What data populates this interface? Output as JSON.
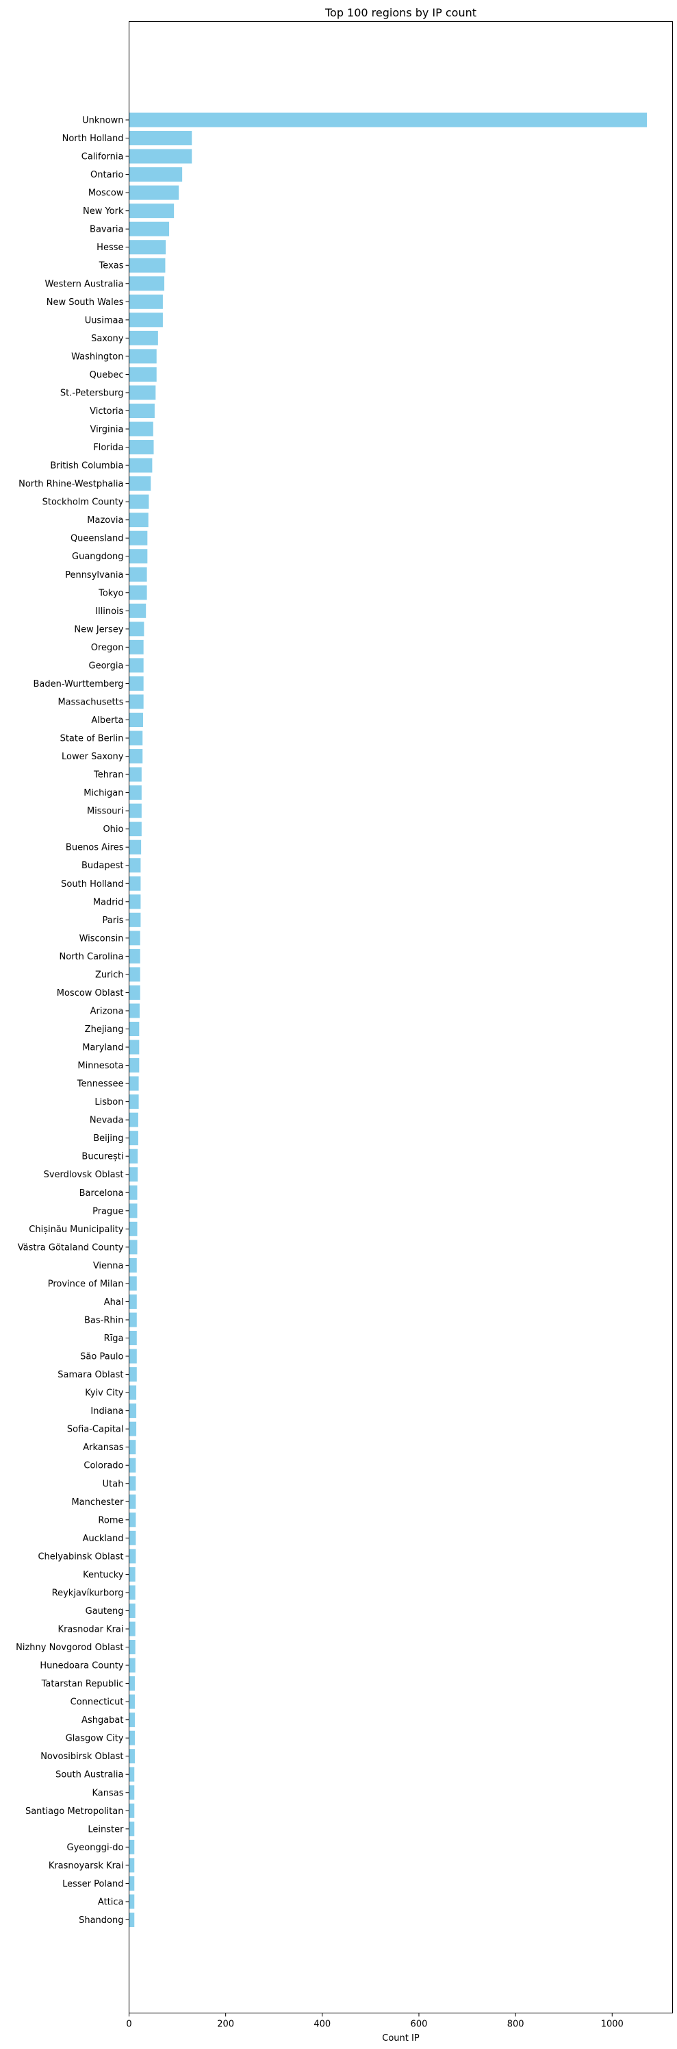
{
  "chart_data": {
    "type": "bar",
    "orientation": "horizontal",
    "title": "Top 100 regions by IP count",
    "xlabel": "Count IP",
    "ylabel": "",
    "xlim": [
      0,
      1125
    ],
    "xticks": [
      0,
      200,
      400,
      600,
      800,
      1000
    ],
    "grid": false,
    "legend": "none",
    "bar_color": "#87CEEB",
    "categories": [
      "Unknown",
      "North Holland",
      "California",
      "Ontario",
      "Moscow",
      "New York",
      "Bavaria",
      "Hesse",
      "Texas",
      "Western Australia",
      "New South Wales",
      "Uusimaa",
      "Saxony",
      "Washington",
      "Quebec",
      "St.-Petersburg",
      "Victoria",
      "Virginia",
      "Florida",
      "British Columbia",
      "North Rhine-Westphalia",
      "Stockholm County",
      "Mazovia",
      "Queensland",
      "Guangdong",
      "Pennsylvania",
      "Tokyo",
      "Illinois",
      "New Jersey",
      "Oregon",
      "Georgia",
      "Baden-Wurttemberg",
      "Massachusetts",
      "Alberta",
      "State of Berlin",
      "Lower Saxony",
      "Tehran",
      "Michigan",
      "Missouri",
      "Ohio",
      "Buenos Aires",
      "Budapest",
      "South Holland",
      "Madrid",
      "Paris",
      "Wisconsin",
      "North Carolina",
      "Zurich",
      "Moscow Oblast",
      "Arizona",
      "Zhejiang",
      "Maryland",
      "Minnesota",
      "Tennessee",
      "Lisbon",
      "Nevada",
      "Beijing",
      "București",
      "Sverdlovsk Oblast",
      "Barcelona",
      "Prague",
      "Chișinău Municipality",
      "Västra Götaland County",
      "Vienna",
      "Province of Milan",
      "Ahal",
      "Bas-Rhin",
      "Rīga",
      "São Paulo",
      "Samara Oblast",
      "Kyiv City",
      "Indiana",
      "Sofia-Capital",
      "Arkansas",
      "Colorado",
      "Utah",
      "Manchester",
      "Rome",
      "Auckland",
      "Chelyabinsk Oblast",
      "Kentucky",
      "Reykjavíkurborg",
      "Gauteng",
      "Krasnodar Krai",
      "Nizhny Novgorod Oblast",
      "Hunedoara County",
      "Tatarstan Republic",
      "Connecticut",
      "Ashgabat",
      "Glasgow City",
      "Novosibirsk Oblast",
      "South Australia",
      "Kansas",
      "Santiago Metropolitan",
      "Leinster",
      "Gyeonggi-do",
      "Krasnoyarsk Krai",
      "Lesser Poland",
      "Attica",
      "Shandong"
    ],
    "values": [
      1072,
      130,
      130,
      110,
      103,
      93,
      83,
      76,
      75,
      73,
      70,
      70,
      60,
      57,
      57,
      55,
      53,
      50,
      51,
      48,
      45,
      41,
      40,
      38,
      38,
      37,
      37,
      35,
      31,
      30,
      30,
      30,
      30,
      29,
      28,
      28,
      26,
      26,
      26,
      26,
      25,
      24,
      24,
      24,
      24,
      23,
      23,
      23,
      23,
      22,
      21,
      21,
      21,
      20,
      20,
      19,
      19,
      18,
      18,
      17,
      17,
      17,
      17,
      16,
      16,
      16,
      16,
      16,
      16,
      16,
      15,
      15,
      15,
      14,
      14,
      14,
      14,
      14,
      14,
      14,
      13,
      13,
      13,
      13,
      13,
      13,
      12,
      12,
      12,
      12,
      12,
      11,
      11,
      11,
      11,
      11,
      11,
      11,
      11,
      11
    ]
  }
}
